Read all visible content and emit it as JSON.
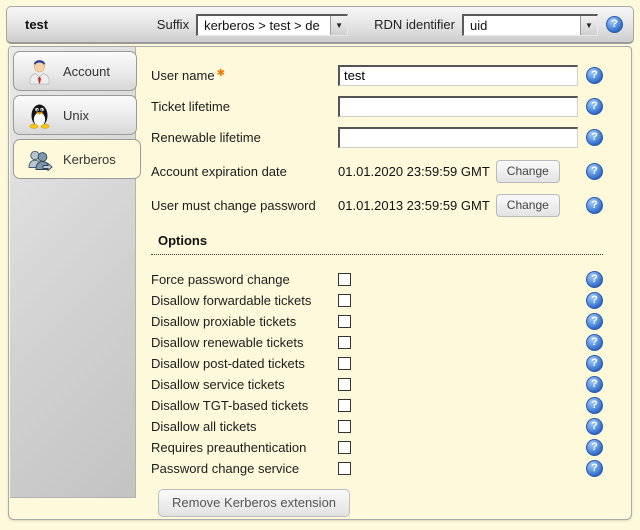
{
  "header": {
    "title": "test",
    "suffix_label": "Suffix",
    "suffix_value": "kerberos > test > de",
    "rdn_label": "RDN identifier",
    "rdn_value": "uid"
  },
  "icons": {
    "help_glyph": "?",
    "dropdown_arrow": "▼",
    "required_marker": "✱"
  },
  "colors": {
    "page_background": "#FFF9DC",
    "header_gradient_top": "#F7F7F7",
    "header_gradient_bottom": "#CDCDCD",
    "panel_border": "#A9A9A9",
    "sidebar_gray": "#D2D2D2",
    "help_blue": "#2E66C4",
    "required_orange": "#F07800"
  },
  "sidebar": {
    "tabs": [
      {
        "label": "Account",
        "icon": "user-icon",
        "active": false
      },
      {
        "label": "Unix",
        "icon": "tux-icon",
        "active": false
      },
      {
        "label": "Kerberos",
        "icon": "kerberos-icon",
        "active": true
      }
    ]
  },
  "form": {
    "fields": [
      {
        "label": "User name",
        "required": true,
        "value": "test"
      },
      {
        "label": "Ticket lifetime",
        "required": false,
        "value": ""
      },
      {
        "label": "Renewable lifetime",
        "required": false,
        "value": ""
      }
    ],
    "dates": [
      {
        "label": "Account expiration date",
        "value": "01.01.2020 23:59:59 GMT",
        "button": "Change"
      },
      {
        "label": "User must change password",
        "value": "01.01.2013 23:59:59 GMT",
        "button": "Change"
      }
    ],
    "options_heading": "Options",
    "checkboxes": [
      {
        "label": "Force password change",
        "checked": false
      },
      {
        "label": "Disallow forwardable tickets",
        "checked": false
      },
      {
        "label": "Disallow proxiable tickets",
        "checked": false
      },
      {
        "label": "Disallow renewable tickets",
        "checked": false
      },
      {
        "label": "Disallow post-dated tickets",
        "checked": false
      },
      {
        "label": "Disallow service tickets",
        "checked": false
      },
      {
        "label": "Disallow TGT-based tickets",
        "checked": false
      },
      {
        "label": "Disallow all tickets",
        "checked": false
      },
      {
        "label": "Requires preauthentication",
        "checked": false
      },
      {
        "label": "Password change service",
        "checked": false
      }
    ],
    "remove_button": "Remove Kerberos extension"
  }
}
